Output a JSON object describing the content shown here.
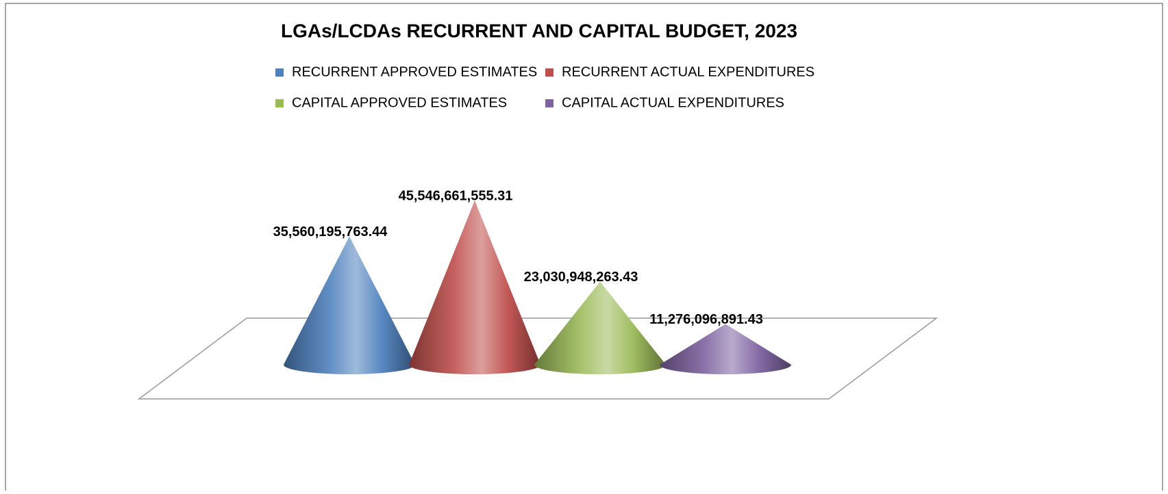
{
  "chart_data": {
    "type": "cone",
    "title": "LGAs/LCDAs RECURRENT AND CAPITAL BUDGET, 2023",
    "series": [
      {
        "name": "RECURRENT APPROVED ESTIMATES",
        "color": "#4f81bd",
        "values": [
          35560195763.44
        ],
        "value_labels": [
          "35,560,195,763.44"
        ]
      },
      {
        "name": "RECURRENT ACTUAL EXPENDITURES",
        "color": "#c0504d",
        "values": [
          45546661555.31
        ],
        "value_labels": [
          "45,546,661,555.31"
        ]
      },
      {
        "name": "CAPITAL APPROVED ESTIMATES",
        "color": "#9bbb59",
        "values": [
          23030948263.43
        ],
        "value_labels": [
          "23,030,948,263.43"
        ]
      },
      {
        "name": "CAPITAL ACTUAL EXPENDITURES",
        "color": "#8064a2",
        "values": [
          11276096891.43
        ],
        "value_labels": [
          "11,276,096,891.43"
        ]
      }
    ],
    "legend": "top"
  }
}
